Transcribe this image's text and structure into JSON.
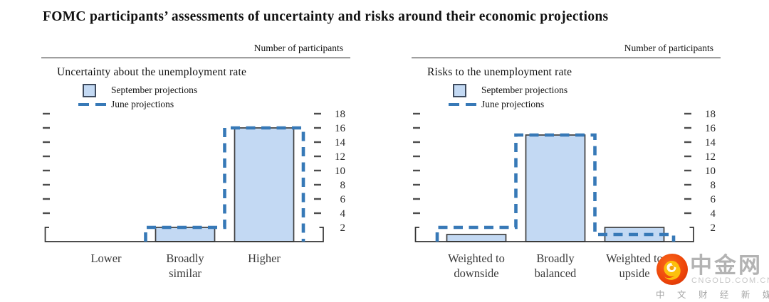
{
  "title": "FOMC participants’ assessments of uncertainty and risks around their economic projections",
  "colors": {
    "bar_fill": "#c3d9f3",
    "bar_stroke": "#3d3d3d",
    "june_dash": "#3779b7",
    "axis": "#333333",
    "tick": "#4d4d4d",
    "text": "#1c1c1c",
    "logo_red": "#e8420c",
    "logo_gold": "#fcc00d",
    "logo_gray": "#b3b3b3"
  },
  "chart_data": [
    {
      "type": "bar",
      "title": "Uncertainty about the unemployment rate",
      "axis_header": "Number of participants",
      "categories": [
        "Lower",
        "Broadly similar",
        "Higher"
      ],
      "category_label_lines": [
        [
          "Lower"
        ],
        [
          "Broadly",
          "similar"
        ],
        [
          "Higher"
        ]
      ],
      "series": [
        {
          "name": "September projections",
          "style": "bar",
          "values": [
            0,
            2,
            16
          ]
        },
        {
          "name": "June projections",
          "style": "dashed-step",
          "values": [
            0,
            2,
            16
          ]
        }
      ],
      "xlabel": "",
      "ylabel": "Number of participants",
      "yticks": [
        2,
        4,
        6,
        8,
        10,
        12,
        14,
        16,
        18
      ],
      "ylim": [
        0,
        19.4
      ],
      "grid": false,
      "legend_position": "top-left"
    },
    {
      "type": "bar",
      "title": "Risks to the unemployment rate",
      "axis_header": "Number of participants",
      "categories": [
        "Weighted to downside",
        "Broadly balanced",
        "Weighted to upside"
      ],
      "category_label_lines": [
        [
          "Weighted to",
          "downside"
        ],
        [
          "Broadly",
          "balanced"
        ],
        [
          "Weighted to",
          "upside"
        ]
      ],
      "series": [
        {
          "name": "September projections",
          "style": "bar",
          "values": [
            1,
            15,
            2
          ]
        },
        {
          "name": "June projections",
          "style": "dashed-step",
          "values": [
            2,
            15,
            1
          ]
        }
      ],
      "xlabel": "",
      "ylabel": "Number of participants",
      "yticks": [
        2,
        4,
        6,
        8,
        10,
        12,
        14,
        16,
        18
      ],
      "ylim": [
        0,
        19.4
      ],
      "grid": false,
      "legend_position": "top-left"
    }
  ],
  "watermark": {
    "brand": "中金网",
    "domain": "CNGOLD.COM.CN",
    "tagline": "中 文 财 经 新 媒 体"
  }
}
